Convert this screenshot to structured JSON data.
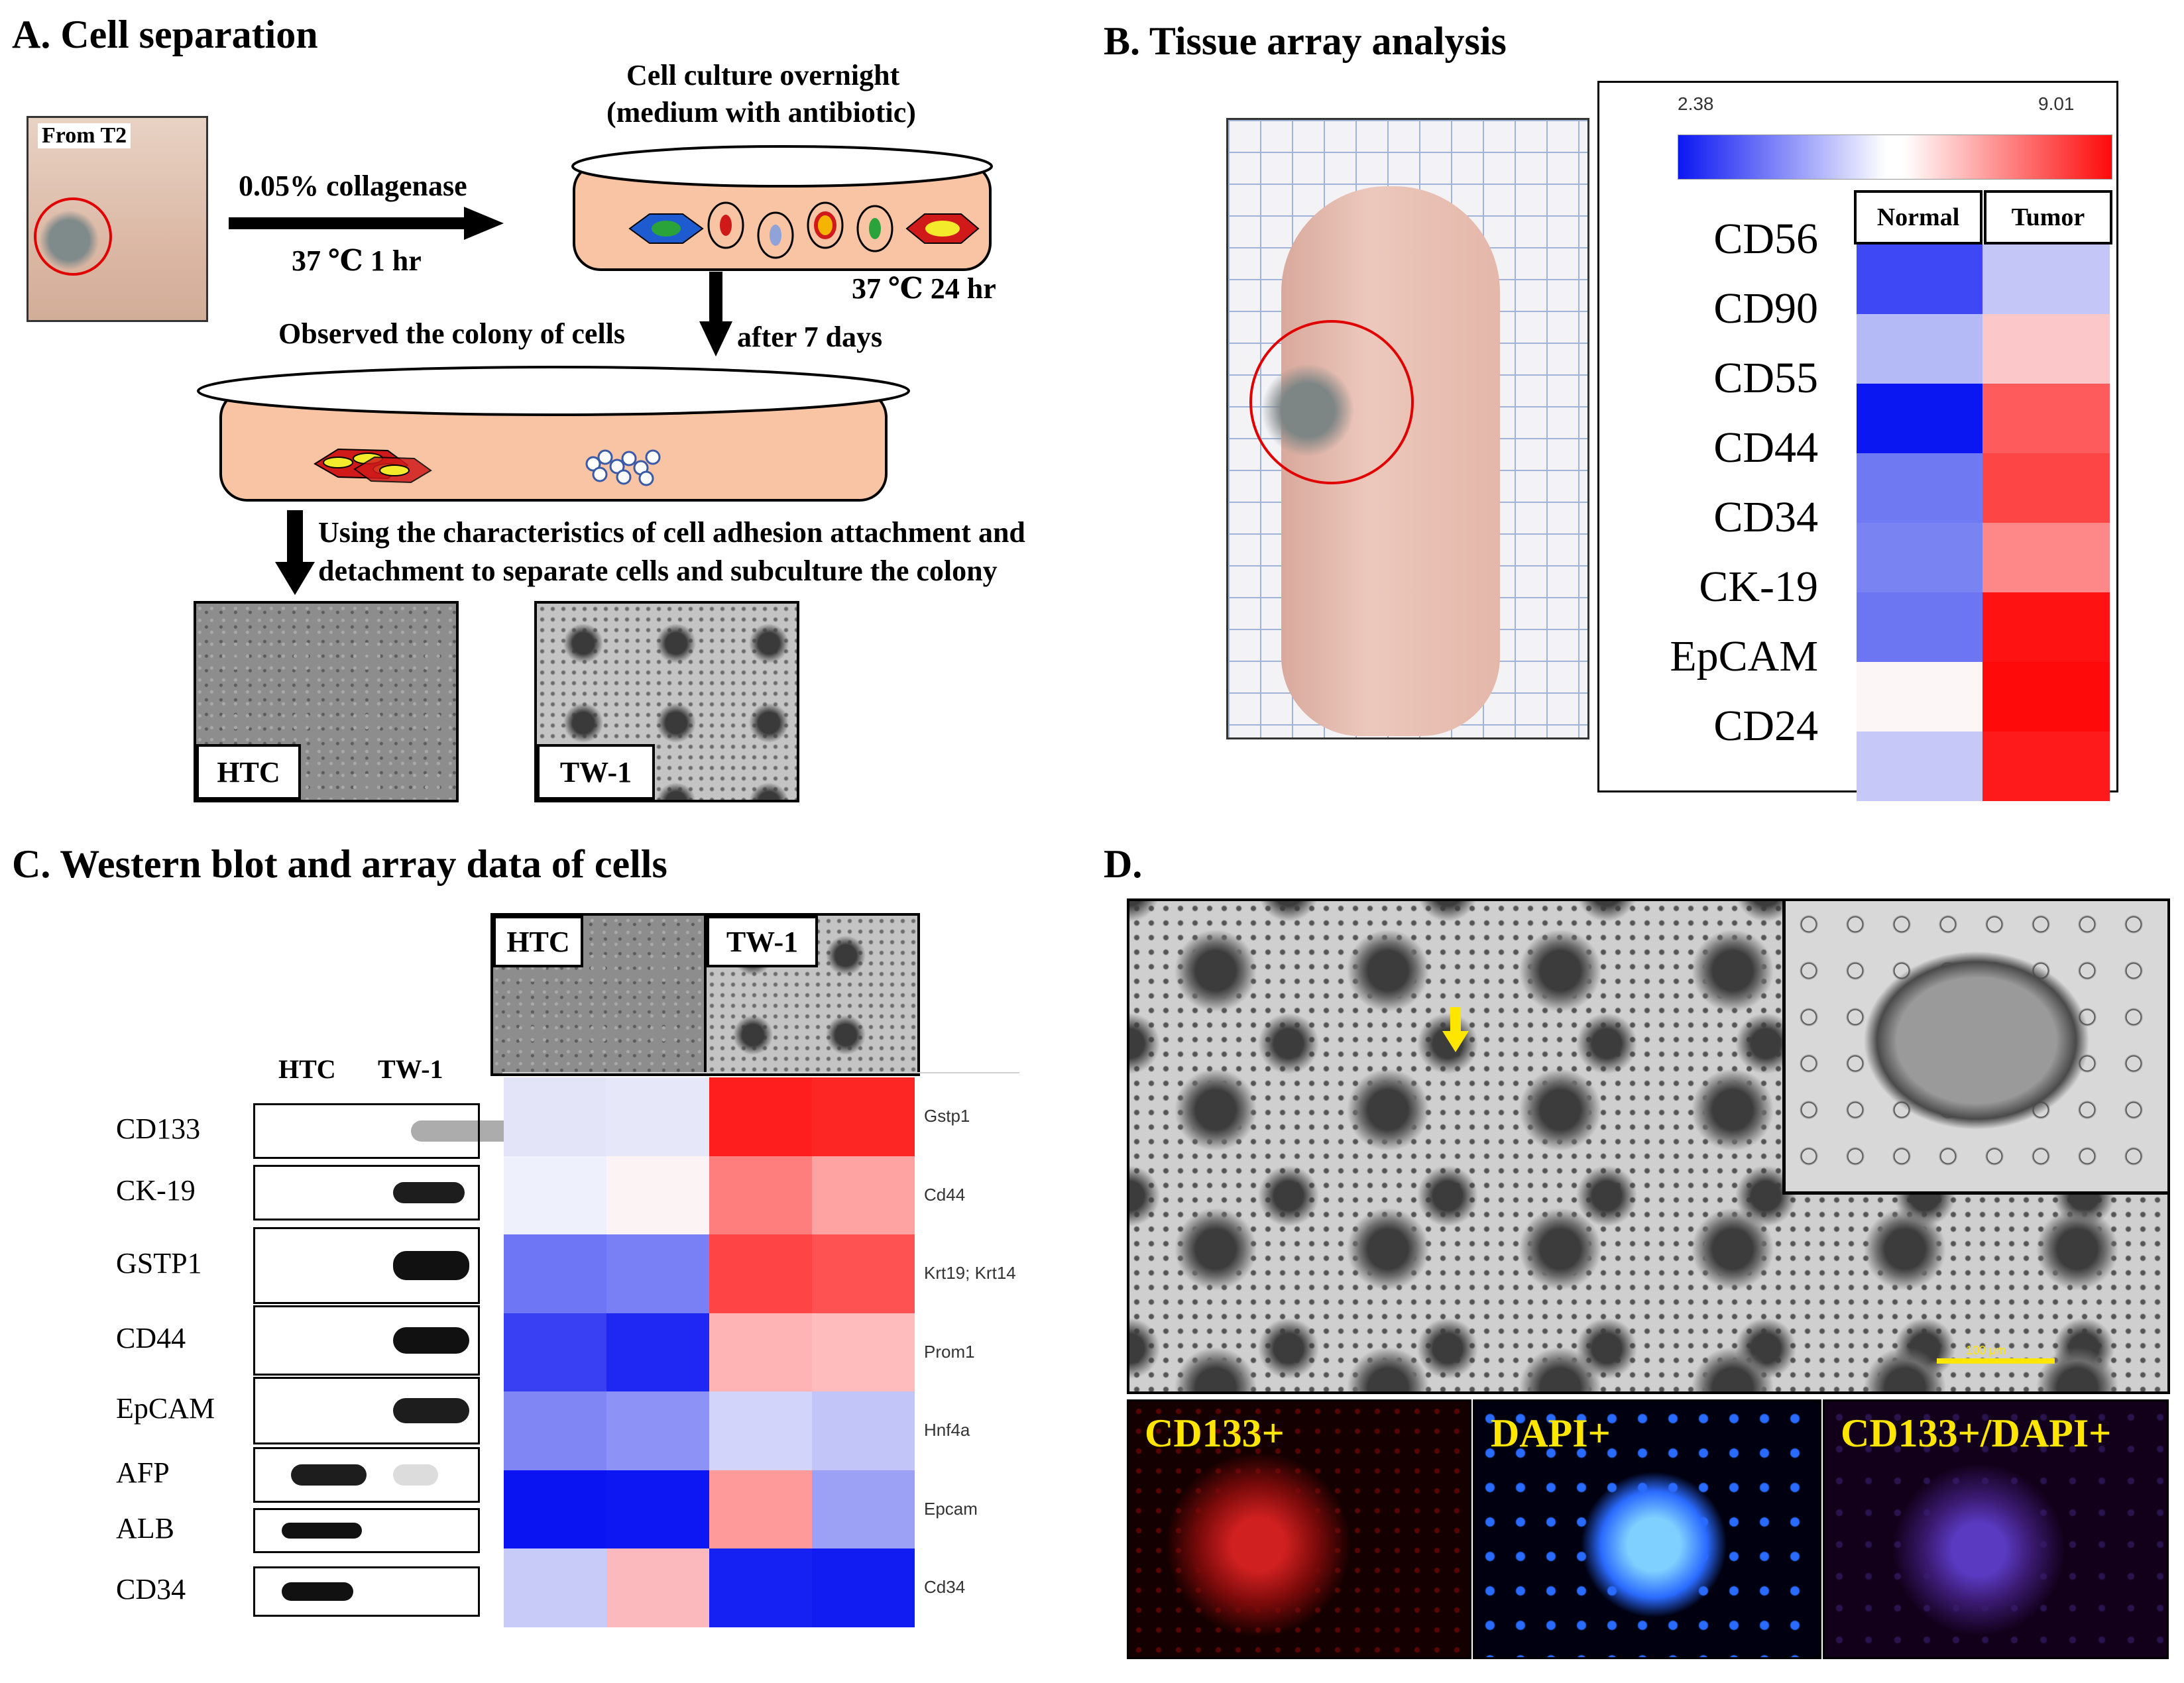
{
  "panelA": {
    "title": "A.  Cell separation",
    "from_label": "From T2",
    "arrow1_top": "0.05% collagenase",
    "arrow1_bottom": "37 ℃  1 hr",
    "culture_line1": "Cell culture overnight",
    "culture_line2": "(medium with antibiotic)",
    "culture_temp": "37 ℃  24 hr",
    "observed": "Observed the colony of cells",
    "after": "after 7 days",
    "using_line1": "Using the characteristics of cell adhesion attachment and",
    "using_line2": "detachment to separate cells and subculture the colony",
    "img1_label": "HTC",
    "img2_label": "TW-1"
  },
  "panelB": {
    "title": "B.  Tissue array analysis",
    "scale_min": "2.38",
    "scale_max": "9.01",
    "col_headers": [
      "Normal",
      "Tumor"
    ],
    "markers": [
      "CD56",
      "CD90",
      "CD55",
      "CD44",
      "CD34",
      "CK-19",
      "EpCAM",
      "CD24"
    ],
    "heatmap": {
      "colors_normal": [
        "#3f48f5",
        "#b4baf5",
        "#0b17f2",
        "#6f79f2",
        "#7a83f2",
        "#6c76f2",
        "#fdf6f6",
        "#c6c9f7"
      ],
      "colors_tumor": [
        "#c3c6f7",
        "#fbc7c9",
        "#fe5c5c",
        "#fe4545",
        "#fe8888",
        "#fe1212",
        "#fe0a0a",
        "#fe1a1a"
      ]
    }
  },
  "panelC": {
    "title": "C.  Western blot and array data of cells",
    "lane_labels": [
      "HTC",
      "TW-1"
    ],
    "blot_labels": [
      "CD133",
      "CK-19",
      "GSTP1",
      "CD44",
      "EpCAM",
      "AFP",
      "ALB",
      "CD34"
    ],
    "img_labels": [
      "HTC",
      "TW-1"
    ],
    "genes": [
      "Gstp1",
      "Cd44",
      "Krt19; Krt14",
      "Prom1",
      "Hnf4a",
      "Epcam",
      "Cd34"
    ],
    "heat_colors": [
      [
        "#e3e4f8",
        "#e6e7f8",
        "#fe1e1e",
        "#fe2525"
      ],
      [
        "#eef0fb",
        "#fbf3f4",
        "#fe7e7e",
        "#fea2a2"
      ],
      [
        "#6f76f6",
        "#7980f5",
        "#fe4444",
        "#fe5252"
      ],
      [
        "#3940f4",
        "#1f27f3",
        "#feb4b4",
        "#febcbc"
      ],
      [
        "#8087f5",
        "#8c92f6",
        "#d2d4f9",
        "#c2c5f8"
      ],
      [
        "#0a14f3",
        "#0d17f3",
        "#fe9a9a",
        "#9ca1f6"
      ],
      [
        "#c8cbf8",
        "#fcb9bd",
        "#1520f3",
        "#111cf3"
      ]
    ]
  },
  "panelD": {
    "title": "D.",
    "scale_label": "100 μm",
    "fluor_labels": [
      "CD133+",
      "DAPI+",
      "CD133+/DAPI+"
    ]
  }
}
